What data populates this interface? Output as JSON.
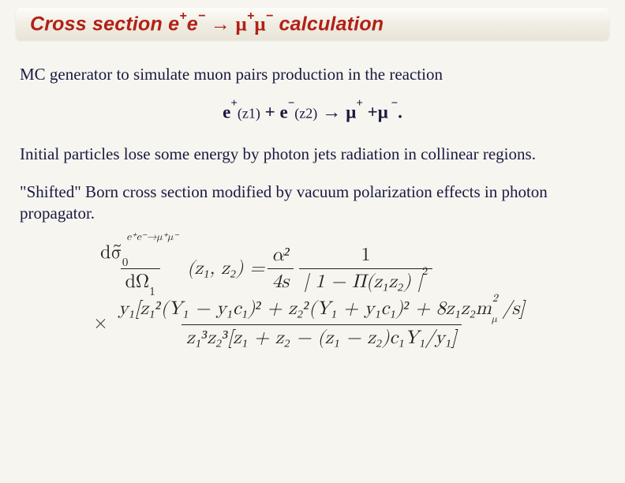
{
  "title": {
    "prefix": "Cross section e",
    "sup1": "+",
    "mid1": "e",
    "sup2": "−",
    "arrow": " → ",
    "mu1": "μ",
    "sup3": "+",
    "mu2": "μ",
    "sup4": "−",
    "suffix": " calculation"
  },
  "para1": "MC generator to simulate  muon pairs production in the reaction",
  "reaction": {
    "e1": "e",
    "p1": "+",
    "z1": "(z1)",
    "plus": " + ",
    "e2": "e",
    "p2": "−",
    "z2": "(z2)",
    "arrow": "  →  ",
    "m1": "μ",
    "p3": "+",
    "plus2": " +",
    "m2": "μ",
    "p4": " −",
    "end": "."
  },
  "para2": "Initial particles lose some energy by photon jets radiation in collinear regions.",
  "para3": "\"Shifted\"  Born cross section modified by vacuum polarization effects in  photon propagator.",
  "formula": {
    "lhs_num_a": "dσ̃",
    "lhs_num_sup": "e⁺e⁻→μ⁺μ⁻",
    "lhs_num_sub": "0",
    "lhs_den": "dΩ",
    "lhs_den_sub": "1",
    "lhs_args": "(z₁, z₂) = ",
    "r1_num": "α²",
    "r1_den": "4s",
    "r1_mid": " ",
    "r2_num": "1",
    "r2_den_a": "| 1 − Π(z₁z₂) |",
    "r2_den_sup": "2",
    "row2_prefix": "× ",
    "row2_num_a": "y₁[z₁²(Y₁ − y₁c₁)² + z₂²(Y₁ + y₁c₁)² + 8z₁z₂m",
    "row2_num_sub": "μ",
    "row2_num_sup": "2",
    "row2_num_b": "/s]",
    "row2_den": "z₁³z₂³[z₁ + z₂ − (z₁ − z₂)c₁Y₁/y₁]"
  },
  "colors": {
    "title_color": "#b22015",
    "body_color": "#1a1a40",
    "bg": "#f7f5f0"
  }
}
